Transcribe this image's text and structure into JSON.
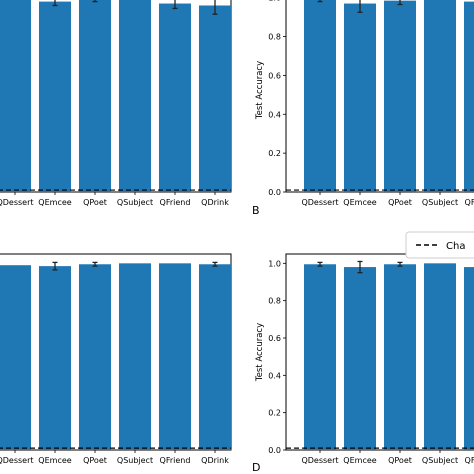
{
  "chart_data": [
    {
      "panel": "",
      "type": "bar",
      "categories": [
        "QDessert",
        "QEmcee",
        "QPoet",
        "QSubject",
        "QFriend",
        "QDrink"
      ],
      "values": [
        0.99,
        0.98,
        0.99,
        1.0,
        0.97,
        0.96
      ],
      "errors": [
        0.0,
        0.02,
        0.01,
        0.0,
        0.025,
        0.045
      ],
      "ylim": [
        0,
        1.05
      ],
      "yticks": [],
      "ylabel": "",
      "chance_level": 0.01
    },
    {
      "panel": "B",
      "type": "bar",
      "categories": [
        "QDessert",
        "QEmcee",
        "QPoet",
        "QSubject",
        "QFriend"
      ],
      "values": [
        0.99,
        0.97,
        0.985,
        1.0,
        0.98
      ],
      "errors": [
        0.01,
        0.045,
        0.02,
        0.0,
        0.02
      ],
      "ylim": [
        0,
        1.05
      ],
      "yticks": [
        "0.0",
        "0.2",
        "0.4",
        "0.6",
        "0.8",
        "1.0"
      ],
      "ylabel": "Test Accuracy",
      "chance_level": 0.01
    },
    {
      "panel": "",
      "type": "bar",
      "categories": [
        "QDessert",
        "QEmcee",
        "QPoet",
        "QSubject",
        "QFriend",
        "QDrink"
      ],
      "values": [
        0.99,
        0.985,
        0.995,
        1.0,
        1.0,
        0.995
      ],
      "errors": [
        0.0,
        0.02,
        0.01,
        0.0,
        0.0,
        0.01
      ],
      "ylim": [
        0,
        1.05
      ],
      "yticks": [],
      "ylabel": "",
      "chance_level": 0.01
    },
    {
      "panel": "D",
      "type": "bar",
      "categories": [
        "QDessert",
        "QEmcee",
        "QPoet",
        "QSubject",
        "QFriend"
      ],
      "values": [
        0.995,
        0.98,
        0.995,
        1.0,
        0.98
      ],
      "errors": [
        0.01,
        0.03,
        0.01,
        0.0,
        0.02
      ],
      "ylim": [
        0,
        1.05
      ],
      "yticks": [
        "0.0",
        "0.2",
        "0.4",
        "0.6",
        "0.8",
        "1.0"
      ],
      "ylabel": "Test Accuracy",
      "chance_level": 0.01
    }
  ],
  "legend": {
    "label": "Cha"
  },
  "colors": {
    "bar": "#1f77b4",
    "error": "#222222",
    "chance_line": "#000000"
  }
}
